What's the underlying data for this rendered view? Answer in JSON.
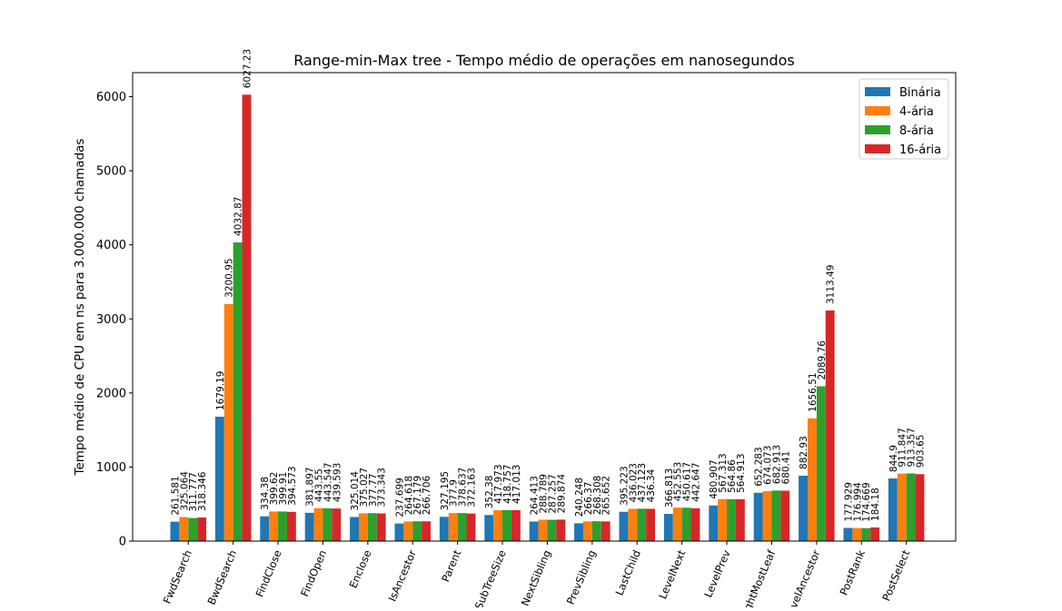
{
  "chart_data": {
    "type": "bar",
    "title": "Range-min-Max tree - Tempo médio de operações em nanosegundos",
    "xlabel": "",
    "ylabel": "Tempo médio de CPU em ns para 3.000.000 chamadas",
    "ylim": [
      0,
      6325
    ],
    "yticks": [
      0,
      1000,
      2000,
      3000,
      4000,
      5000,
      6000
    ],
    "legend_position": "top-right",
    "categories": [
      "FwdSearch",
      "BwdSearch",
      "FindClose",
      "FindOpen",
      "Enclose",
      "IsAncestor",
      "Parent",
      "SubTreeSize",
      "NextSibling",
      "PrevSibling",
      "LastChild",
      "LevelNext",
      "LevelPrev",
      "RightMostLeaf",
      "LevelAncestor",
      "PostRank",
      "PostSelect"
    ],
    "category_labels_visible": [
      "FwdSearch",
      "BwdSearch",
      "FindClose",
      "FindOpen",
      "Enclose",
      "IsAncestor",
      "Parent",
      "SubTreeSize",
      "NextSibling",
      "PrevSibling",
      "LastChild",
      "LevelNext",
      "LevelPrev",
      "ightMostLeaf",
      "LevelAncestor",
      "PostRank",
      "PostSelect"
    ],
    "series": [
      {
        "name": "Binária",
        "color": "#1f77b4",
        "values": [
          261.581,
          1679.19,
          334.38,
          381.897,
          325.014,
          237.699,
          327.195,
          352.38,
          264.413,
          240.248,
          395.223,
          366.813,
          480.907,
          652.283,
          882.93,
          177.929,
          844.9
        ]
      },
      {
        "name": "4-ária",
        "color": "#ff7f0e",
        "values": [
          325.064,
          3200.95,
          399.62,
          443.55,
          375.027,
          264.618,
          377.9,
          417.973,
          288.789,
          266.37,
          436.023,
          452.553,
          567.313,
          674.073,
          1656.51,
          176.994,
          911.847
        ]
      },
      {
        "name": "8-ária",
        "color": "#2ca02c",
        "values": [
          311.777,
          4032.87,
          399.91,
          443.547,
          377.77,
          267.179,
          378.637,
          418.757,
          287.257,
          268.308,
          437.123,
          450.617,
          564.86,
          682.913,
          2089.76,
          174.669,
          913.357
        ]
      },
      {
        "name": "16-ária",
        "color": "#d62728",
        "values": [
          318.346,
          6027.23,
          394.573,
          439.593,
          373.343,
          266.706,
          372.163,
          417.013,
          289.874,
          265.652,
          436.34,
          442.647,
          564.913,
          680.41,
          3113.49,
          184.18,
          903.65
        ]
      }
    ],
    "value_labels": [
      [
        "261.581",
        "1679.19",
        "334.38",
        "381.897",
        "325.014",
        "237.699",
        "327.195",
        "352.38",
        "264.413",
        "240.248",
        "395.223",
        "366.813",
        "480.907",
        "652.283",
        "882.93",
        "177.929",
        "844.9"
      ],
      [
        "325.064",
        "3200.95",
        "399.62",
        "443.55",
        "375.027",
        "264.618",
        "377.9",
        "417.973",
        "288.789",
        "266.37",
        "436.023",
        "452.553",
        "567.313",
        "674.073",
        "1656.51",
        "176.994",
        "911.847"
      ],
      [
        "311.777",
        "4032.87",
        "399.91",
        "443.547",
        "377.77",
        "267.179",
        "378.637",
        "418.757",
        "287.257",
        "268.308",
        "437.123",
        "450.617",
        "564.86",
        "682.913",
        "2089.76",
        "174.669",
        "913.357"
      ],
      [
        "318.346",
        "6027.23",
        "394.573",
        "439.593",
        "373.343",
        "266.706",
        "372.163",
        "417.013",
        "289.874",
        "265.652",
        "436.34",
        "442.647",
        "564.913",
        "680.41",
        "3113.49",
        "184.18",
        "903.65"
      ]
    ]
  }
}
